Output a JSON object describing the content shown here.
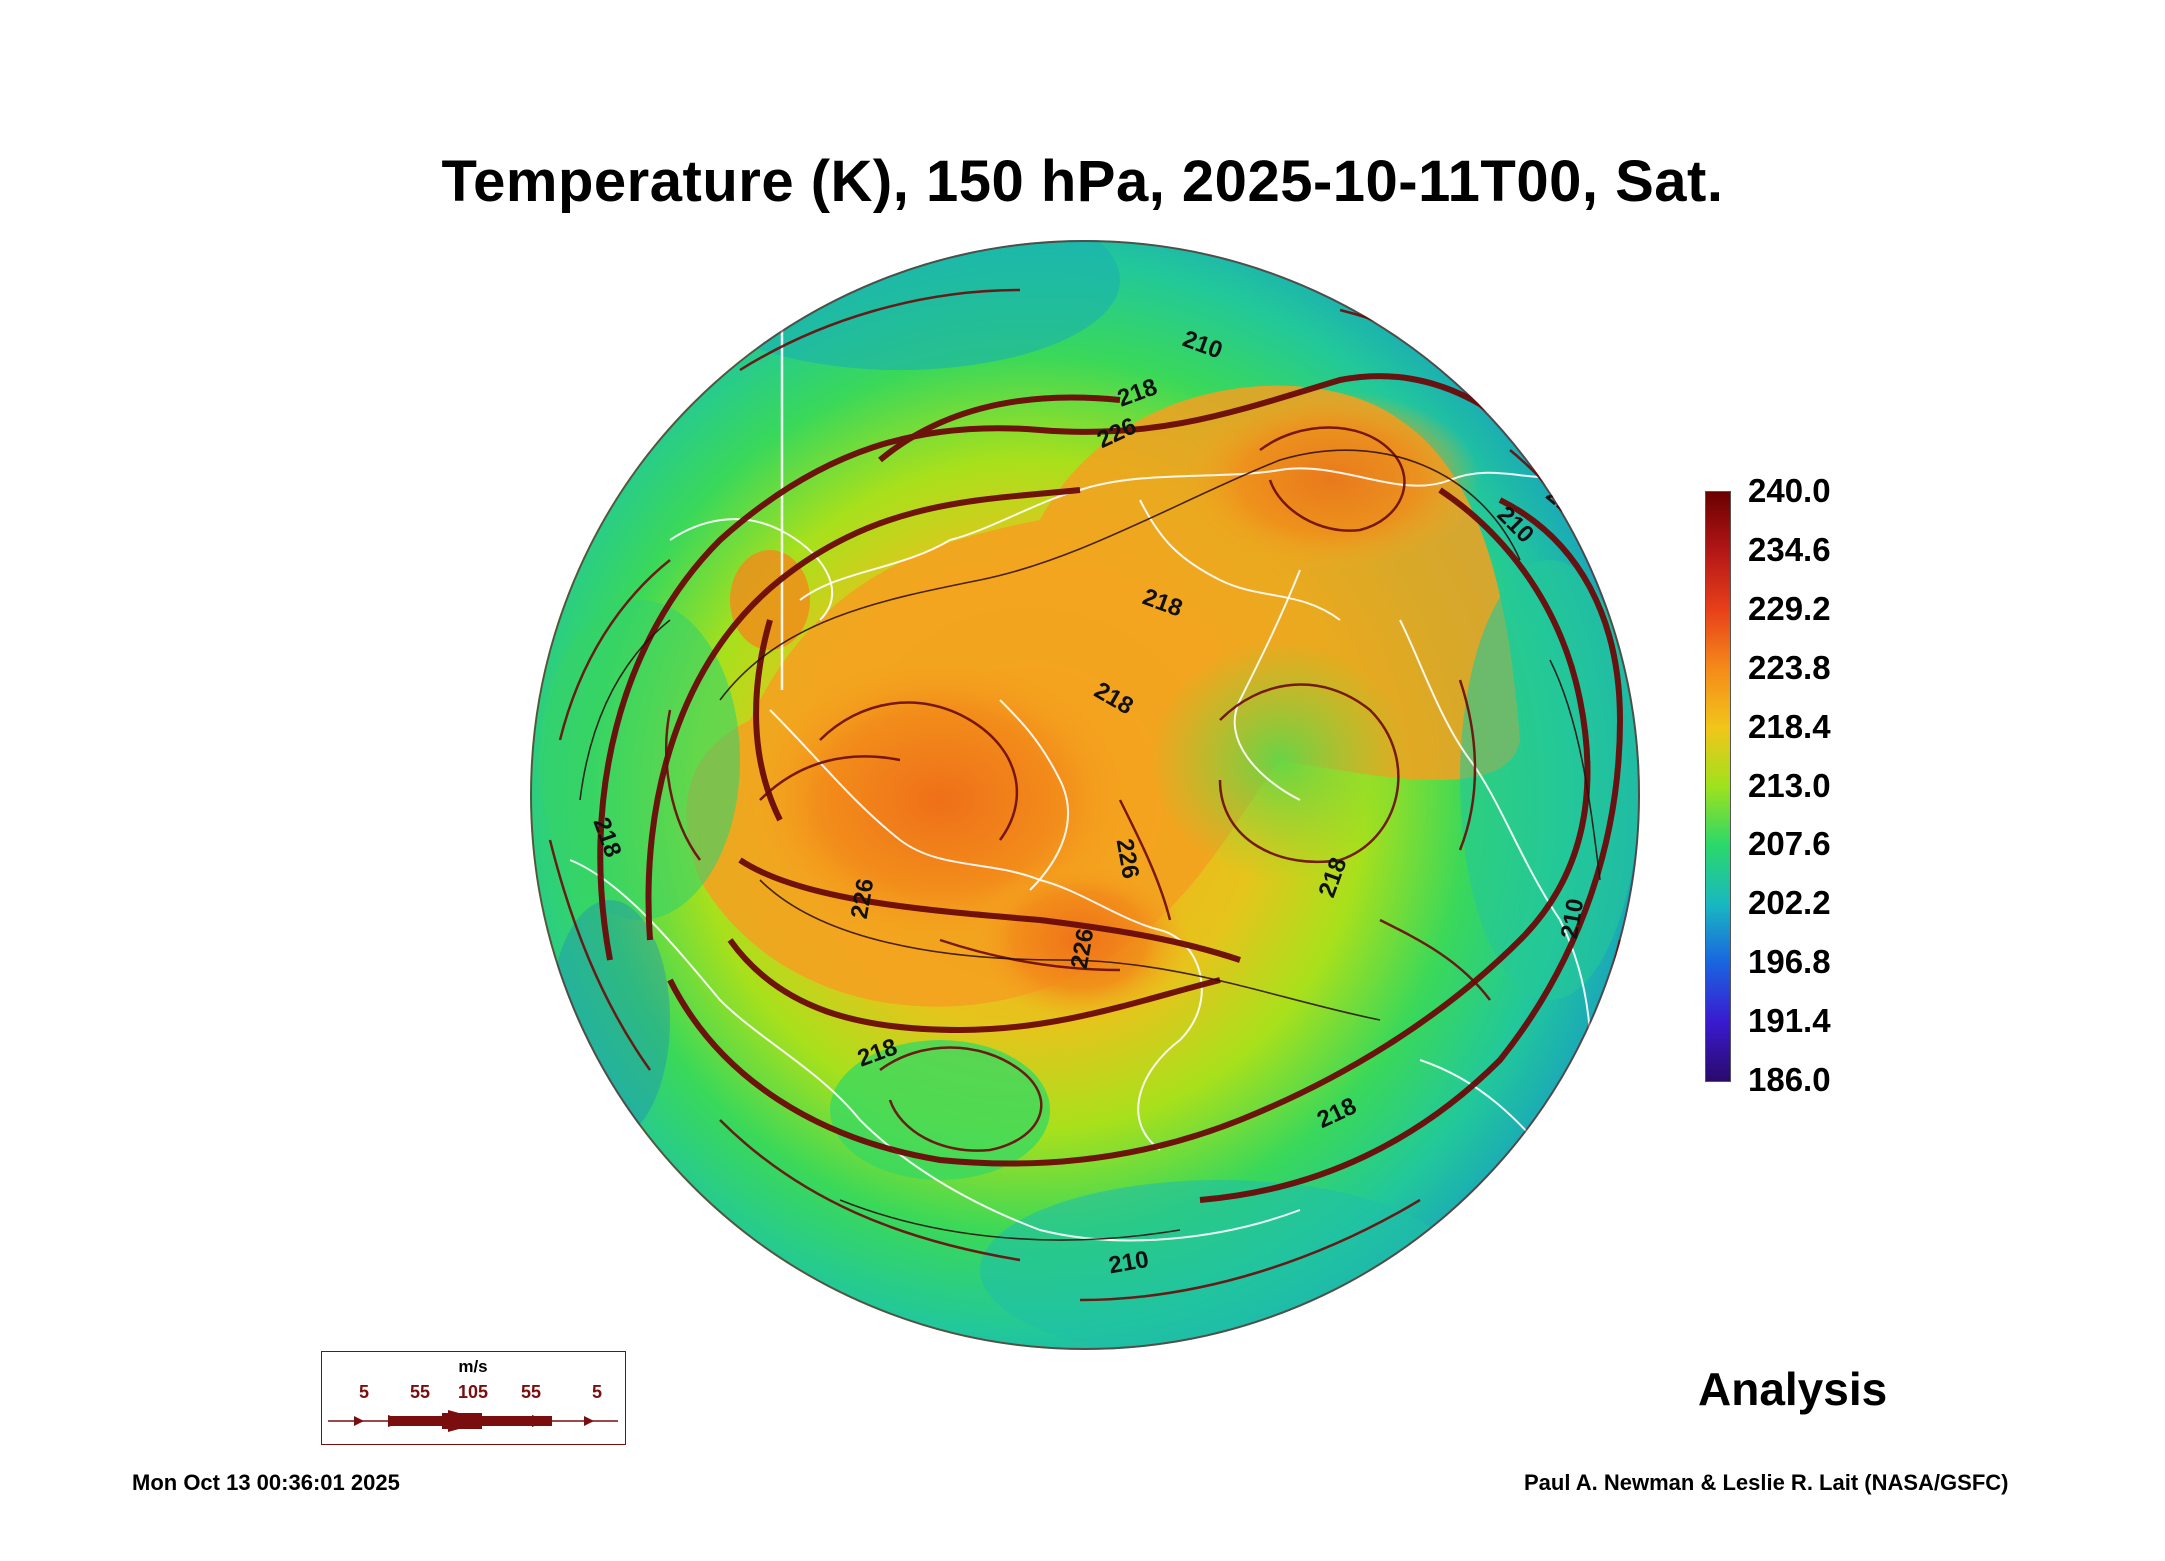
{
  "title": "Temperature (K), 150 hPa, 2025-10-11T00, Sat.",
  "colorbar": {
    "labels": [
      "240.0",
      "234.6",
      "229.2",
      "223.8",
      "218.4",
      "213.0",
      "207.6",
      "202.2",
      "196.8",
      "191.4",
      "186.0"
    ],
    "colors": [
      "#6b0000",
      "#b31616",
      "#e8401a",
      "#f58a1a",
      "#f2c51a",
      "#9ee21c",
      "#2ad86a",
      "#19b8c0",
      "#1a64e0",
      "#3a1ad0",
      "#2a0a6a"
    ]
  },
  "map": {
    "contour_labels": [
      "218",
      "226",
      "210",
      "210",
      "218",
      "218",
      "218",
      "226",
      "226",
      "218",
      "226",
      "218",
      "210",
      "218",
      "210",
      "210"
    ],
    "colors": {
      "warm_core": "#f07a1a",
      "orange": "#f5a81e",
      "yellow_green": "#b6e01a",
      "green": "#3ad85a",
      "teal": "#1fbfa6",
      "streamline": "#6b0a0a",
      "coastline": "#ffffff"
    }
  },
  "wind_scale": {
    "unit": "m/s",
    "labels": [
      "5",
      "55",
      "105",
      "55",
      "5"
    ]
  },
  "analysis_label": "Analysis",
  "timestamp": "Mon Oct 13 00:36:01 2025",
  "credit": "Paul A. Newman & Leslie R. Lait (NASA/GSFC)"
}
